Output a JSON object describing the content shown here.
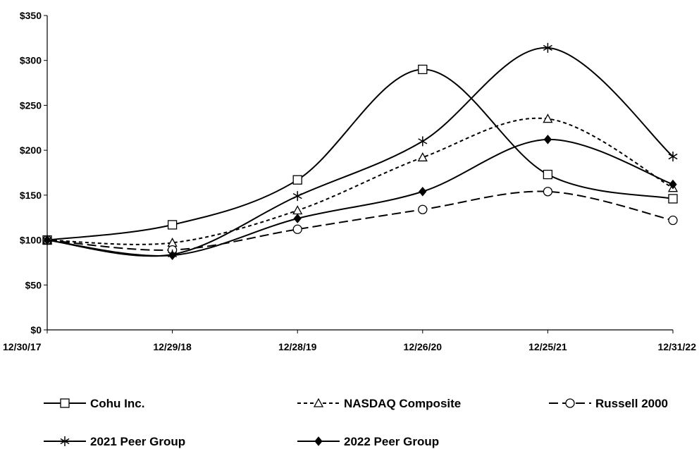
{
  "chart_data": {
    "type": "line",
    "title": "",
    "xlabel": "",
    "ylabel": "",
    "categories": [
      "12/30/17",
      "12/29/18",
      "12/28/19",
      "12/26/20",
      "12/25/21",
      "12/31/22"
    ],
    "y_ticks": [
      "$0",
      "$50",
      "$100",
      "$150",
      "$200",
      "$250",
      "$300",
      "$350"
    ],
    "ylim": [
      0,
      350
    ],
    "grid": false,
    "legend_position": "bottom",
    "series": [
      {
        "name": "Cohu Inc.",
        "values": [
          100,
          117,
          167,
          290,
          173,
          146
        ],
        "marker": "square-open",
        "dash": "solid"
      },
      {
        "name": "NASDAQ Composite",
        "values": [
          100,
          97,
          133,
          192,
          235,
          158
        ],
        "marker": "triangle-open",
        "dash": "short-dash"
      },
      {
        "name": "Russell 2000",
        "values": [
          100,
          89,
          112,
          134,
          154,
          122
        ],
        "marker": "circle-open",
        "dash": "long-dash"
      },
      {
        "name": "2021 Peer Group",
        "values": [
          100,
          84,
          149,
          210,
          314,
          193
        ],
        "marker": "asterisk",
        "dash": "solid"
      },
      {
        "name": "2022 Peer Group",
        "values": [
          100,
          83,
          124,
          154,
          212,
          162
        ],
        "marker": "diamond-filled",
        "dash": "solid"
      }
    ]
  }
}
